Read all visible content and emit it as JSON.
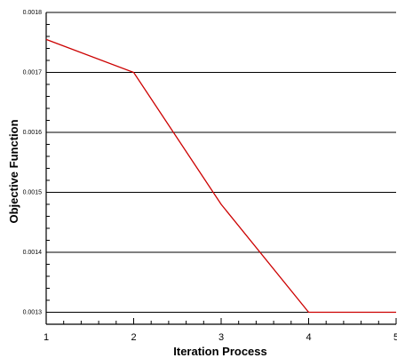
{
  "chart_data": {
    "type": "line",
    "title": "",
    "xlabel": "Iteration Process",
    "ylabel": "Objective Function",
    "xlim": [
      1,
      5
    ],
    "ylim": [
      0.00128,
      0.0018
    ],
    "x_ticks": [
      "1",
      "2",
      "3",
      "4",
      "5"
    ],
    "y_ticks": [
      "0.0013",
      "0.0014",
      "0.0015",
      "0.0016",
      "0.0017",
      "0.0018"
    ],
    "grid": "horizontal",
    "legend": "none",
    "series": [
      {
        "color": "#cc0000",
        "x": [
          1,
          2,
          3,
          4,
          5
        ],
        "y": [
          0.001755,
          0.0017,
          0.00148,
          0.0013,
          0.0013
        ]
      }
    ]
  }
}
